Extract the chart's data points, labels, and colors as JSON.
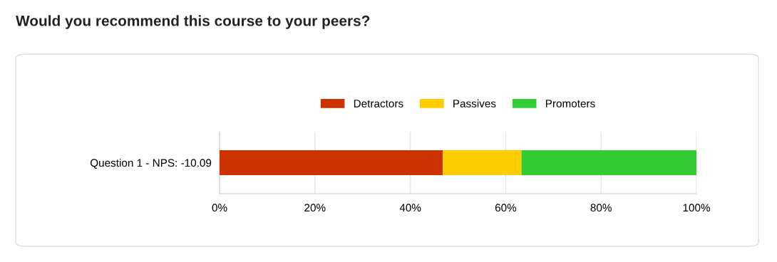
{
  "chart_data": {
    "type": "bar",
    "title": "Would you recommend this course to your peers?",
    "orientation": "horizontal",
    "stacked": true,
    "categories": [
      "Question 1 - NPS: -10.09"
    ],
    "series": [
      {
        "name": "Detractors",
        "color": "#cc3300",
        "values": [
          46.8
        ]
      },
      {
        "name": "Passives",
        "color": "#ffcc00",
        "values": [
          16.5
        ]
      },
      {
        "name": "Promoters",
        "color": "#33cc33",
        "values": [
          36.7
        ]
      }
    ],
    "xlim": [
      0,
      100
    ],
    "xticks": [
      {
        "value": 0,
        "label": "0%"
      },
      {
        "value": 20,
        "label": "20%"
      },
      {
        "value": 40,
        "label": "40%"
      },
      {
        "value": 60,
        "label": "60%"
      },
      {
        "value": 80,
        "label": "80%"
      },
      {
        "value": 100,
        "label": "100%"
      }
    ],
    "grid": "x",
    "legend": "top"
  }
}
